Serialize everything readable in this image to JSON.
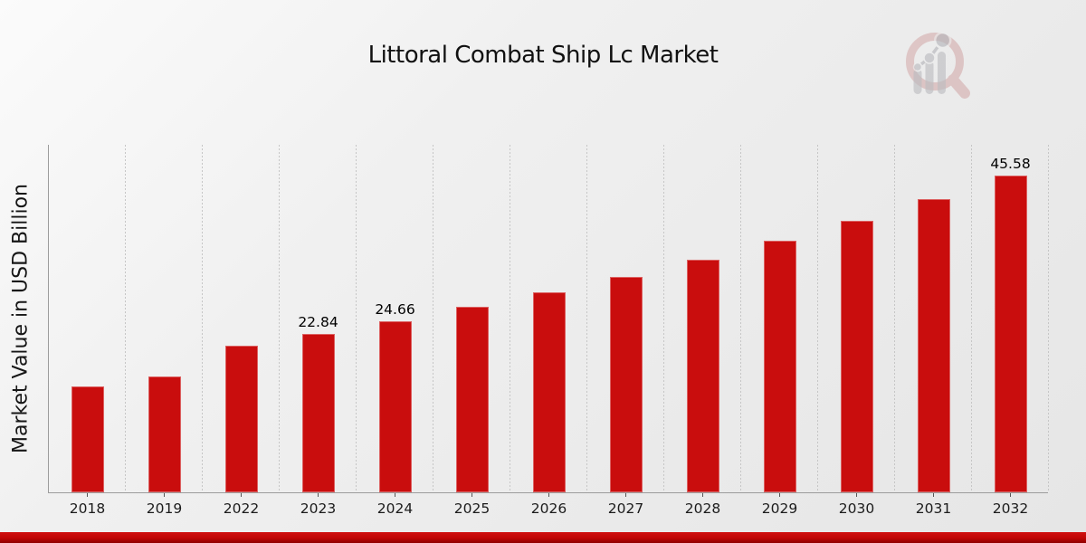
{
  "header": {
    "title": "Littoral Combat Ship Lc Market"
  },
  "chart_data": {
    "type": "bar",
    "title": "Littoral Combat Ship Lc Market",
    "xlabel": "",
    "ylabel": "Market Value in USD Billion",
    "categories": [
      "2018",
      "2019",
      "2022",
      "2023",
      "2024",
      "2025",
      "2026",
      "2027",
      "2028",
      "2029",
      "2030",
      "2031",
      "2032"
    ],
    "values": [
      15.24,
      16.65,
      21.15,
      22.84,
      24.66,
      26.63,
      28.75,
      31.05,
      33.53,
      36.21,
      39.1,
      42.22,
      45.58
    ],
    "data_labels": [
      "",
      "",
      "",
      "22.84",
      "24.66",
      "",
      "",
      "",
      "",
      "",
      "",
      "",
      "45.58"
    ],
    "ylim": [
      0,
      50.13
    ],
    "y_tick_labels": "none",
    "grid": "vertical-dotted",
    "legend": "none",
    "bar_color": "#c90d0d",
    "gridline_color": "#c6c6c6",
    "axis_color": "#9c9c9c"
  },
  "footer": {
    "banner_color": "#c00606"
  },
  "logo": {
    "name": "magnifier-bar-chart-logo",
    "ring_color": "#cf9f9f",
    "bars_color": "#bcbcc0"
  }
}
